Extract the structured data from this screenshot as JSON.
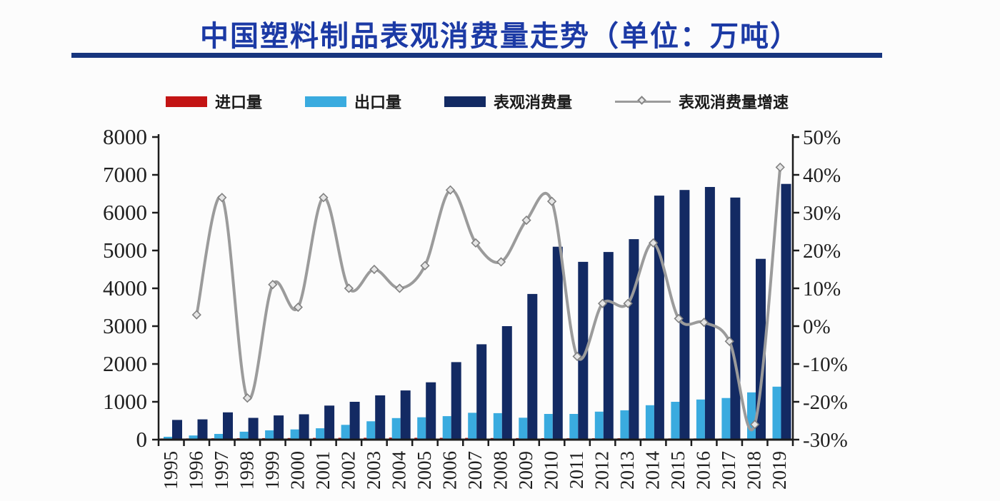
{
  "page": {
    "title": "中国塑料制品表观消费量走势（单位：万吨）"
  },
  "legend": [
    {
      "label": "进口量",
      "color": "#c31414",
      "type": "bar"
    },
    {
      "label": "出口量",
      "color": "#3aabdf",
      "type": "bar"
    },
    {
      "label": "表观消费量",
      "color": "#132a63",
      "type": "bar"
    },
    {
      "label": "表观消费量增速",
      "color": "#9b9b9b",
      "type": "line"
    }
  ],
  "chart_data": {
    "type": "bar",
    "title": "中国塑料制品表观消费量走势（单位：万吨）",
    "unit": "万吨",
    "categories": [
      "1995",
      "1996",
      "1997",
      "1998",
      "1999",
      "2000",
      "2001",
      "2002",
      "2003",
      "2004",
      "2005",
      "2006",
      "2007",
      "2008",
      "2009",
      "2010",
      "2011",
      "2012",
      "2013",
      "2014",
      "2015",
      "2016",
      "2017",
      "2018",
      "2019"
    ],
    "series": [
      {
        "name": "进口量",
        "type": "bar",
        "axis": "left",
        "color": "#c31414",
        "values": [
          30,
          32,
          35,
          38,
          40,
          42,
          45,
          48,
          50,
          52,
          50,
          48,
          45,
          42,
          40,
          38,
          36,
          36,
          35,
          34,
          33,
          32,
          31,
          30,
          30
        ]
      },
      {
        "name": "出口量",
        "type": "bar",
        "axis": "left",
        "color": "#3aabdf",
        "values": [
          75,
          110,
          150,
          210,
          245,
          270,
          300,
          390,
          485,
          570,
          590,
          620,
          710,
          700,
          580,
          680,
          680,
          740,
          775,
          910,
          1000,
          1060,
          1100,
          1250,
          1400
        ]
      },
      {
        "name": "表观消费量",
        "type": "bar",
        "axis": "left",
        "color": "#132a63",
        "values": [
          520,
          535,
          720,
          575,
          640,
          670,
          900,
          1000,
          1170,
          1300,
          1515,
          2050,
          2520,
          3000,
          3850,
          5100,
          4700,
          4960,
          5300,
          6450,
          6600,
          6680,
          6400,
          4780,
          6760
        ]
      },
      {
        "name": "表观消费量增速",
        "type": "line",
        "axis": "right",
        "color": "#9b9b9b",
        "values_pct": [
          null,
          3,
          34,
          -19,
          11,
          5,
          34,
          10,
          15,
          10,
          16,
          36,
          22,
          17,
          28,
          33,
          -8,
          6,
          6,
          22,
          2,
          1,
          -4,
          -26,
          42
        ]
      }
    ],
    "left_axis": {
      "min": 0,
      "max": 8000,
      "step": 1000,
      "ticks": [
        "8000",
        "7000",
        "6000",
        "5000",
        "4000",
        "3000",
        "2000",
        "1000",
        "0"
      ]
    },
    "right_axis": {
      "min": -30,
      "max": 50,
      "step": 10,
      "ticks": [
        "50%",
        "40%",
        "30%",
        "20%",
        "10%",
        "0%",
        "-10%",
        "-20%",
        "-30%"
      ]
    },
    "grid": false,
    "legend_position": "top"
  }
}
